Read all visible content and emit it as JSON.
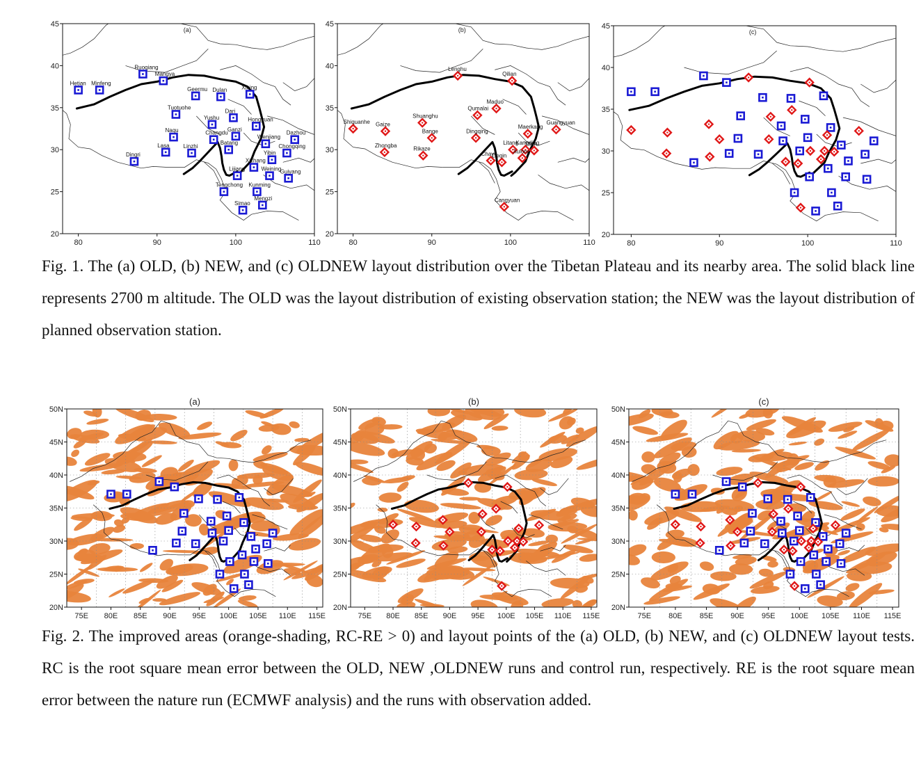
{
  "figure1": {
    "caption": "Fig. 1. The (a) OLD, (b) NEW, and (c) OLDNEW layout distribution over the Tibetan Plateau and its nearby area. The solid black line represents 2700 m altitude. The OLD was the layout distribution of existing observation station; the NEW was the layout distribution of planned observation station.",
    "x_ticks": [
      "80",
      "90",
      "100",
      "110"
    ],
    "y_ticks": [
      "20",
      "25",
      "30",
      "35",
      "40",
      "45"
    ],
    "panels": [
      {
        "tag": "(a)",
        "layout": "OLD"
      },
      {
        "tag": "(b)",
        "layout": "NEW"
      },
      {
        "tag": "(c)",
        "layout": "OLDNEW"
      }
    ],
    "old_stations": [
      {
        "name": "Hetian",
        "lon": 80.0,
        "lat": 37.1
      },
      {
        "name": "Minfeng",
        "lon": 82.7,
        "lat": 37.1
      },
      {
        "name": "Ruoqiang",
        "lon": 88.2,
        "lat": 39.0
      },
      {
        "name": "Mangya",
        "lon": 90.8,
        "lat": 38.2
      },
      {
        "name": "Geermu",
        "lon": 94.9,
        "lat": 36.4
      },
      {
        "name": "Dulan",
        "lon": 98.1,
        "lat": 36.3
      },
      {
        "name": "Xining",
        "lon": 101.8,
        "lat": 36.6
      },
      {
        "name": "Tuotuohe",
        "lon": 92.4,
        "lat": 34.2
      },
      {
        "name": "Dari",
        "lon": 99.7,
        "lat": 33.8
      },
      {
        "name": "Yushu",
        "lon": 97.0,
        "lat": 33.0
      },
      {
        "name": "Hongyuan",
        "lon": 102.6,
        "lat": 32.8
      },
      {
        "name": "Naqu",
        "lon": 92.1,
        "lat": 31.5
      },
      {
        "name": "Changdu",
        "lon": 97.2,
        "lat": 31.2
      },
      {
        "name": "Ganzi",
        "lon": 100.0,
        "lat": 31.6
      },
      {
        "name": "Batang",
        "lon": 99.1,
        "lat": 30.0
      },
      {
        "name": "Wenjiang",
        "lon": 103.8,
        "lat": 30.7
      },
      {
        "name": "Dazhou",
        "lon": 107.5,
        "lat": 31.2
      },
      {
        "name": "Lasa",
        "lon": 91.1,
        "lat": 29.7
      },
      {
        "name": "Linzhi",
        "lon": 94.4,
        "lat": 29.6
      },
      {
        "name": "Yibin",
        "lon": 104.6,
        "lat": 28.8
      },
      {
        "name": "Chongqing",
        "lon": 106.5,
        "lat": 29.6
      },
      {
        "name": "Dingri",
        "lon": 87.1,
        "lat": 28.6
      },
      {
        "name": "Xichang",
        "lon": 102.3,
        "lat": 27.9
      },
      {
        "name": "Lijiang",
        "lon": 100.2,
        "lat": 26.9
      },
      {
        "name": "Weining",
        "lon": 104.3,
        "lat": 26.9
      },
      {
        "name": "Guiyang",
        "lon": 106.7,
        "lat": 26.6
      },
      {
        "name": "Tengchong",
        "lon": 98.5,
        "lat": 25.0
      },
      {
        "name": "Kunming",
        "lon": 102.7,
        "lat": 25.0
      },
      {
        "name": "Mengzi",
        "lon": 103.4,
        "lat": 23.4
      },
      {
        "name": "Simao",
        "lon": 100.9,
        "lat": 22.8
      }
    ],
    "new_stations": [
      {
        "name": "Shiquanhe",
        "lon": 80.0,
        "lat": 32.5
      },
      {
        "name": "Gaize",
        "lon": 84.1,
        "lat": 32.2
      },
      {
        "name": "Zhongba",
        "lon": 84.0,
        "lat": 29.7
      },
      {
        "name": "Shuanghu",
        "lon": 88.8,
        "lat": 33.2
      },
      {
        "name": "Bange",
        "lon": 90.0,
        "lat": 31.4
      },
      {
        "name": "Rikaze",
        "lon": 88.9,
        "lat": 29.3
      },
      {
        "name": "Lenghu",
        "lon": 93.3,
        "lat": 38.8
      },
      {
        "name": "Qilian",
        "lon": 100.2,
        "lat": 38.2
      },
      {
        "name": "Maduo",
        "lon": 98.2,
        "lat": 34.9
      },
      {
        "name": "Qumalai",
        "lon": 95.8,
        "lat": 34.1
      },
      {
        "name": "Dingqing",
        "lon": 95.6,
        "lat": 31.4
      },
      {
        "name": "Maerkang",
        "lon": 102.2,
        "lat": 31.9
      },
      {
        "name": "Guangyuan",
        "lon": 105.8,
        "lat": 32.4
      },
      {
        "name": "Litang",
        "lon": 100.3,
        "lat": 30.0
      },
      {
        "name": "Kangding",
        "lon": 101.9,
        "lat": 30.0
      },
      {
        "name": "Chayu",
        "lon": 97.5,
        "lat": 28.7
      },
      {
        "name": "Deqin",
        "lon": 98.9,
        "lat": 28.5
      },
      {
        "name": "Jiulong",
        "lon": 101.5,
        "lat": 29.0
      },
      {
        "name": "Yaan",
        "lon": 103.0,
        "lat": 29.9
      },
      {
        "name": "Cangyuan",
        "lon": 99.2,
        "lat": 23.2
      }
    ]
  },
  "figure2": {
    "caption": "Fig. 2. The improved areas (orange-shading, RC-RE > 0) and layout points of the (a) OLD, (b) NEW, and (c) OLDNEW layout tests. RC is the root square mean error between the OLD, NEW ,OLDNEW runs and control run, respectively. RE is the root square mean error between the nature run (ECMWF analysis) and the runs with observation added.",
    "x_ticks": [
      "75E",
      "80E",
      "85E",
      "90E",
      "95E",
      "100E",
      "105E",
      "110E",
      "115E"
    ],
    "y_ticks": [
      "20N",
      "25N",
      "30N",
      "35N",
      "40N",
      "45N",
      "50N"
    ],
    "panels": [
      {
        "tag": "(a)"
      },
      {
        "tag": "(b)"
      },
      {
        "tag": "(c)"
      }
    ]
  },
  "colors": {
    "old_marker": "#1a1ad4",
    "new_marker": "#e01818",
    "shading": "#e8843c",
    "contour": "#000000"
  }
}
